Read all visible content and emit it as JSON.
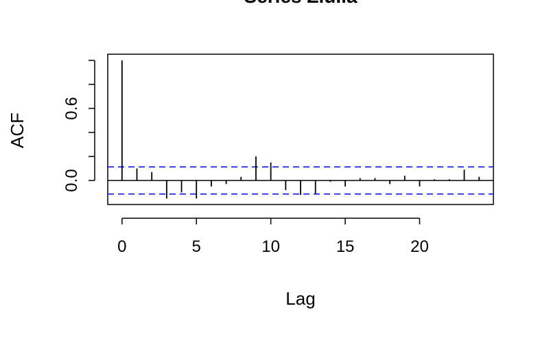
{
  "chart_data": {
    "type": "bar",
    "title": "Series Ziu.la",
    "xlabel": "Lag",
    "ylabel": "ACF",
    "x": [
      0,
      1,
      2,
      3,
      4,
      5,
      6,
      7,
      8,
      9,
      10,
      11,
      12,
      13,
      14,
      15,
      16,
      17,
      18,
      19,
      20,
      21,
      22,
      23,
      24
    ],
    "values": [
      1.0,
      0.1,
      0.07,
      -0.15,
      -0.1,
      -0.15,
      -0.05,
      -0.03,
      0.03,
      0.2,
      0.15,
      -0.08,
      -0.12,
      -0.11,
      -0.01,
      -0.05,
      0.02,
      0.02,
      -0.03,
      0.04,
      -0.05,
      0.01,
      0.01,
      0.09,
      0.03
    ],
    "confidence_bound": 0.113,
    "xlim": [
      -0.96,
      24.96
    ],
    "ylim": [
      -0.2,
      1.0
    ],
    "xticks": [
      0,
      5,
      10,
      15,
      20
    ],
    "xtick_labels": [
      "0",
      "5",
      "10",
      "15",
      "20"
    ],
    "yticks": [
      0.0,
      0.2,
      0.4,
      0.6,
      0.8,
      1.0
    ],
    "ytick_labels": [
      "0.0",
      "",
      "",
      "0.6",
      "",
      ""
    ],
    "colors": {
      "lines": "#000000",
      "bounds": "#0000ff",
      "zero_line": "#000000"
    },
    "grid": false
  }
}
